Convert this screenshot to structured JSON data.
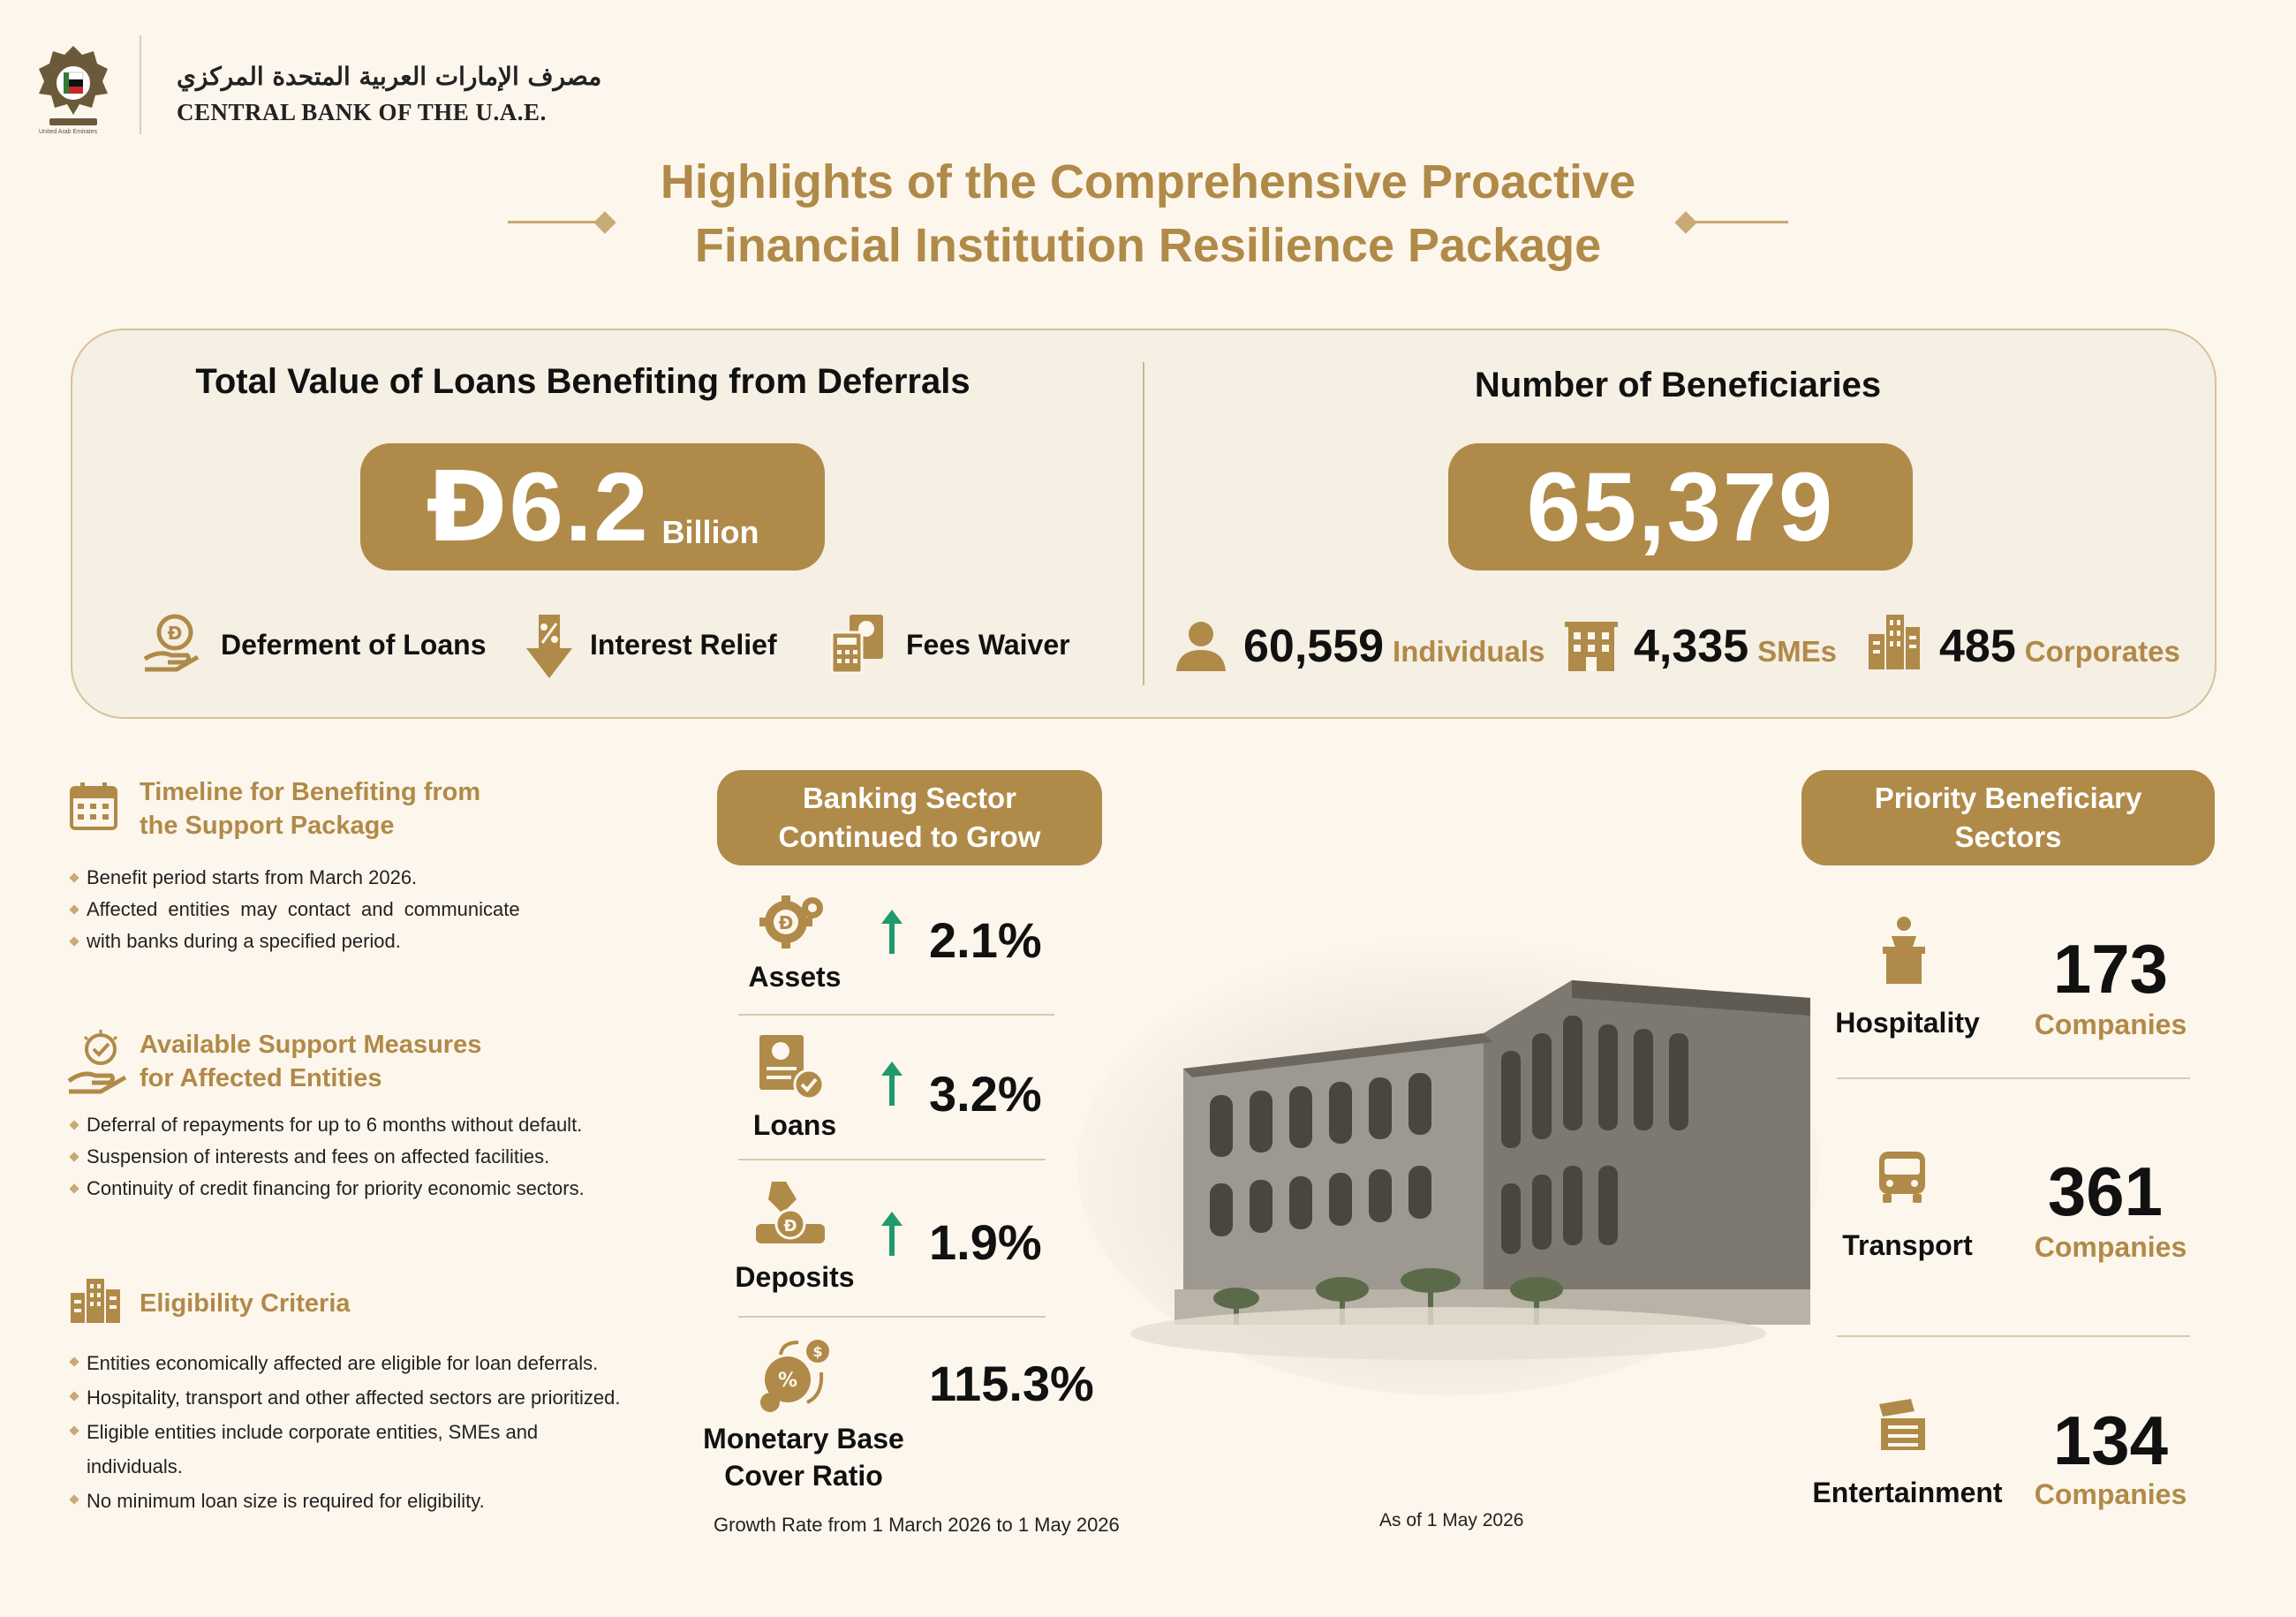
{
  "header": {
    "bank_name_ar": "مصرف الإمارات العربية المتحدة المركزي",
    "bank_name_en": "CENTRAL BANK OF THE U.A.E.",
    "emblem_caption": "United Arab Emirates"
  },
  "title": {
    "line1": "Highlights of the Comprehensive Proactive",
    "line2": "Financial Institution Resilience Package"
  },
  "summary": {
    "loans": {
      "heading": "Total Value of Loans Benefiting from Deferrals",
      "currency_symbol": "Đ",
      "value": "6.2",
      "unit": "Billion",
      "features": [
        {
          "label": "Deferment of Loans",
          "icon": "hand-coin-icon"
        },
        {
          "label": "Interest Relief",
          "icon": "down-arrow-percent-icon"
        },
        {
          "label": "Fees Waiver",
          "icon": "calculator-document-icon"
        }
      ]
    },
    "beneficiaries": {
      "heading": "Number of Beneficiaries",
      "total": "65,379",
      "groups": [
        {
          "value": "60,559",
          "label": "Individuals",
          "icon": "person-icon"
        },
        {
          "value": "4,335",
          "label": "SMEs",
          "icon": "building-icon"
        },
        {
          "value": "485",
          "label": "Corporates",
          "icon": "skyscraper-icon"
        }
      ]
    }
  },
  "left": {
    "timeline": {
      "heading1": "Timeline for Benefiting from",
      "heading2": "the Support Package",
      "bullets": [
        "Benefit period starts from March 2026.",
        "Affected entities may contact and communicate",
        "with banks during a specified period."
      ]
    },
    "measures": {
      "heading1": "Available Support Measures",
      "heading2": "for Affected Entities",
      "bullets": [
        "Deferral of repayments for up to 6 months without default.",
        "Suspension of interests and fees on affected facilities.",
        "Continuity of credit financing for priority economic sectors."
      ]
    },
    "eligibility": {
      "heading": "Eligibility Criteria",
      "bullets": [
        "Entities economically affected are eligible for loan deferrals.",
        "Hospitality, transport and other affected sectors are prioritized.",
        "Eligible entities include corporate entities, SMEs and",
        "individuals.",
        "No minimum loan size is required for eligibility."
      ]
    }
  },
  "banking": {
    "heading1": "Banking Sector",
    "heading2": "Continued to Grow",
    "metrics": [
      {
        "label": "Assets",
        "value": "2.1%",
        "trend": "up"
      },
      {
        "label": "Loans",
        "value": "3.2%",
        "trend": "up"
      },
      {
        "label": "Deposits",
        "value": "1.9%",
        "trend": "up"
      },
      {
        "label1": "Monetary Base",
        "label2": "Cover Ratio",
        "value": "115.3%"
      }
    ],
    "footnote": "Growth Rate from 1 March 2026 to 1 May 2026",
    "as_of": "As of 1 May 2026"
  },
  "priority": {
    "heading1": "Priority Beneficiary",
    "heading2": "Sectors",
    "sectors": [
      {
        "label": "Hospitality",
        "value": "173",
        "unit": "Companies",
        "icon": "bellhop-icon"
      },
      {
        "label": "Transport",
        "value": "361",
        "unit": "Companies",
        "icon": "bus-icon"
      },
      {
        "label": "Entertainment",
        "value": "134",
        "unit": "Companies",
        "icon": "ticket-icon"
      }
    ]
  },
  "colors": {
    "accent": "#b08a48",
    "background": "#fdf6ec",
    "arrow": "#1f9a6c"
  }
}
